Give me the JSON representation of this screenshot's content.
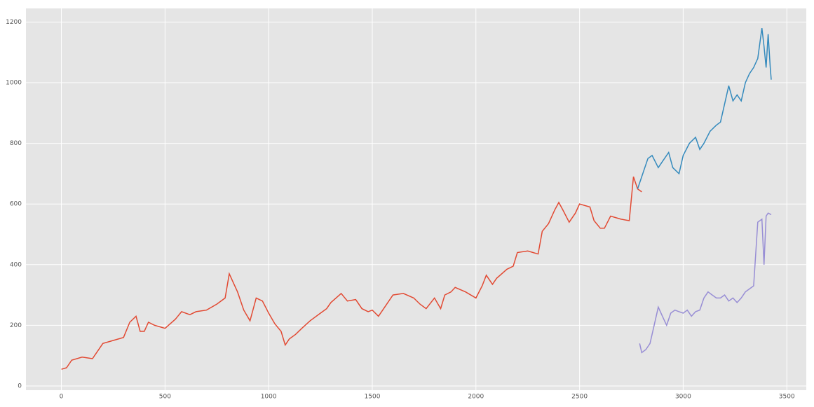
{
  "chart_data": {
    "type": "line",
    "grid": true,
    "background": "#e5e5e5",
    "xlim": [
      -171,
      3594
    ],
    "ylim": [
      -14,
      1245
    ],
    "xticks": [
      0,
      500,
      1000,
      1500,
      2000,
      2500,
      3000,
      3500
    ],
    "yticks": [
      0,
      200,
      400,
      600,
      800,
      1000,
      1200
    ],
    "series": [
      {
        "color": "#e24a33",
        "x": [
          0,
          25,
          50,
          100,
          150,
          200,
          250,
          300,
          330,
          360,
          380,
          400,
          420,
          450,
          500,
          550,
          580,
          620,
          650,
          700,
          750,
          790,
          810,
          830,
          850,
          880,
          910,
          940,
          970,
          1000,
          1030,
          1060,
          1080,
          1100,
          1130,
          1160,
          1200,
          1250,
          1280,
          1300,
          1350,
          1380,
          1420,
          1450,
          1480,
          1500,
          1530,
          1550,
          1600,
          1650,
          1700,
          1730,
          1760,
          1800,
          1830,
          1850,
          1880,
          1900,
          1950,
          2000,
          2030,
          2050,
          2080,
          2100,
          2150,
          2180,
          2200,
          2250,
          2300,
          2320,
          2350,
          2380,
          2400,
          2420,
          2450,
          2480,
          2500,
          2550,
          2570,
          2600,
          2620,
          2650,
          2700,
          2740,
          2760,
          2780,
          2800
        ],
        "values": [
          55,
          60,
          85,
          95,
          90,
          140,
          150,
          160,
          210,
          230,
          180,
          180,
          210,
          200,
          190,
          220,
          245,
          235,
          245,
          250,
          270,
          290,
          370,
          340,
          310,
          250,
          215,
          290,
          280,
          240,
          205,
          180,
          135,
          155,
          170,
          190,
          215,
          240,
          255,
          275,
          305,
          280,
          285,
          255,
          245,
          250,
          230,
          250,
          300,
          305,
          290,
          270,
          255,
          290,
          255,
          300,
          310,
          325,
          310,
          290,
          330,
          365,
          335,
          355,
          385,
          395,
          440,
          445,
          435,
          510,
          535,
          580,
          605,
          580,
          540,
          570,
          600,
          590,
          545,
          520,
          520,
          560,
          550,
          545,
          690,
          650,
          640
        ]
      },
      {
        "color": "#348abd",
        "x": [
          2780,
          2800,
          2830,
          2850,
          2880,
          2900,
          2930,
          2950,
          2980,
          3000,
          3030,
          3060,
          3080,
          3100,
          3130,
          3160,
          3180,
          3200,
          3220,
          3240,
          3260,
          3280,
          3300,
          3320,
          3340,
          3360,
          3380,
          3390,
          3400,
          3410,
          3420,
          3425
        ],
        "values": [
          650,
          690,
          750,
          760,
          720,
          740,
          770,
          720,
          700,
          760,
          800,
          820,
          780,
          800,
          840,
          860,
          870,
          930,
          990,
          940,
          960,
          940,
          1000,
          1030,
          1050,
          1080,
          1180,
          1120,
          1050,
          1160,
          1050,
          1010
        ]
      },
      {
        "color": "#988ed5",
        "x": [
          2790,
          2800,
          2820,
          2840,
          2860,
          2880,
          2900,
          2920,
          2940,
          2960,
          2980,
          3000,
          3020,
          3040,
          3060,
          3080,
          3100,
          3120,
          3140,
          3160,
          3180,
          3200,
          3220,
          3240,
          3260,
          3280,
          3300,
          3320,
          3340,
          3360,
          3380,
          3390,
          3400,
          3410,
          3425
        ],
        "values": [
          140,
          110,
          120,
          140,
          200,
          260,
          230,
          200,
          240,
          250,
          245,
          240,
          250,
          230,
          245,
          250,
          290,
          310,
          300,
          290,
          290,
          300,
          280,
          290,
          275,
          290,
          310,
          320,
          330,
          540,
          550,
          400,
          560,
          570,
          565
        ]
      }
    ]
  }
}
